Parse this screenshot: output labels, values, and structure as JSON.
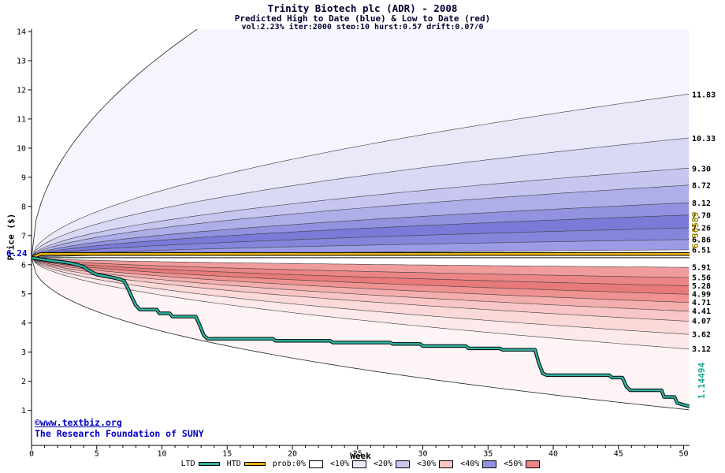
{
  "footer": {
    "site": "©www.textbiz.org",
    "org": "The Research Foundation of SUNY"
  },
  "chart_data": {
    "type": "area",
    "title": "Trinity Biotech plc (ADR) - 2008",
    "subtitle": "Predicted High to Date (blue) &  Low to Date (red)",
    "params_line": "vol:2.23% iter:2000 step:10 hurst:0.57 drift:0.07/0",
    "xlabel": "Week",
    "ylabel": "Price ($)",
    "xlim": [
      0,
      50.45
    ],
    "ylim": [
      -0.2,
      14
    ],
    "x_ticks": [
      0,
      5,
      10,
      15,
      20,
      25,
      30,
      35,
      40,
      45,
      50
    ],
    "y_ticks": [
      1,
      2,
      3,
      4,
      5,
      6,
      7,
      8,
      9,
      10,
      11,
      12,
      13,
      14
    ],
    "start": {
      "week": 0,
      "price": 6.24,
      "label": "6.24"
    },
    "curve_exponent": 0.55,
    "envelope": {
      "high_k": 2.2,
      "low_drop": 5.2,
      "low_exponent": 0.45
    },
    "high_bands": {
      "ends": [
        6.51,
        6.86,
        7.26,
        7.7,
        8.12,
        8.72,
        9.3,
        10.33,
        11.83
      ],
      "labels": [
        "6.51",
        "6.86",
        "7.26",
        "7.70",
        "8.12",
        "8.72",
        "9.30",
        "10.33",
        "11.83"
      ],
      "colors": [
        "#9c9ce6",
        "#8585dc",
        "#7a7ad8",
        "#9292e0",
        "#aeaee9",
        "#c6c6f0",
        "#d9d9f6",
        "#e9e9fa",
        "#f5f5fd"
      ]
    },
    "low_bands": {
      "ends": [
        5.91,
        5.56,
        5.28,
        4.99,
        4.71,
        4.41,
        4.07,
        3.62,
        3.12
      ],
      "labels": [
        "5.91",
        "5.56",
        "5.28",
        "4.99",
        "4.71",
        "4.41",
        "4.07",
        "3.62",
        "3.12"
      ],
      "colors": [
        "#f09c9c",
        "#ec8585",
        "#e87a7a",
        "#f09292",
        "#f4aeae",
        "#f8c6c6",
        "#fbd9d9",
        "#fce9e9",
        "#fdf5f5"
      ]
    },
    "htd": {
      "value": 6.36589,
      "label": "6.36589",
      "color": "#e9b40a"
    },
    "ltd": {
      "end_label": "1.14494",
      "color": "#2cb4a4",
      "points": [
        [
          0,
          6.24
        ],
        [
          0.6,
          6.2
        ],
        [
          1.2,
          6.16
        ],
        [
          1.8,
          6.12
        ],
        [
          2.4,
          6.09
        ],
        [
          3,
          6.05
        ],
        [
          3.5,
          6
        ],
        [
          4,
          5.93
        ],
        [
          4.3,
          5.83
        ],
        [
          4.7,
          5.73
        ],
        [
          5,
          5.66
        ],
        [
          5.6,
          5.61
        ],
        [
          6.2,
          5.56
        ],
        [
          6.8,
          5.5
        ],
        [
          7.1,
          5.44
        ],
        [
          7.4,
          5.18
        ],
        [
          7.7,
          4.88
        ],
        [
          8,
          4.6
        ],
        [
          8.3,
          4.46
        ],
        [
          9.6,
          4.46
        ],
        [
          9.8,
          4.33
        ],
        [
          10.6,
          4.33
        ],
        [
          10.8,
          4.22
        ],
        [
          12.6,
          4.22
        ],
        [
          12.9,
          3.92
        ],
        [
          13.2,
          3.58
        ],
        [
          13.5,
          3.46
        ],
        [
          18.5,
          3.46
        ],
        [
          18.7,
          3.39
        ],
        [
          22.9,
          3.39
        ],
        [
          23.1,
          3.33
        ],
        [
          27.5,
          3.33
        ],
        [
          27.7,
          3.28
        ],
        [
          29.8,
          3.28
        ],
        [
          30,
          3.21
        ],
        [
          33.3,
          3.21
        ],
        [
          33.5,
          3.13
        ],
        [
          35.9,
          3.13
        ],
        [
          36.1,
          3.08
        ],
        [
          38.6,
          3.08
        ],
        [
          38.9,
          2.62
        ],
        [
          39.2,
          2.27
        ],
        [
          39.5,
          2.21
        ],
        [
          44.3,
          2.21
        ],
        [
          44.5,
          2.13
        ],
        [
          45.3,
          2.13
        ],
        [
          45.6,
          1.82
        ],
        [
          45.9,
          1.69
        ],
        [
          48.3,
          1.69
        ],
        [
          48.5,
          1.46
        ],
        [
          49.3,
          1.46
        ],
        [
          49.5,
          1.26
        ],
        [
          50,
          1.19
        ],
        [
          50.45,
          1.14
        ]
      ]
    },
    "legend": [
      {
        "label": "LTD",
        "type": "line",
        "color": "#2cb4a4"
      },
      {
        "label": "HTD",
        "type": "line",
        "color": "#e9b40a"
      },
      {
        "label": "prob:0%",
        "type": "box",
        "color": "#ffffff"
      },
      {
        "label": "<10%",
        "type": "box",
        "color": "#e9e9fa"
      },
      {
        "label": "<20%",
        "type": "box",
        "color": "#c6c6f0"
      },
      {
        "label": "<30%",
        "type": "box",
        "color": "#f8c6c6"
      },
      {
        "label": "<40%",
        "type": "box",
        "color": "#9292e0"
      },
      {
        "label": "<50%",
        "type": "box",
        "color": "#ec8585"
      }
    ]
  }
}
